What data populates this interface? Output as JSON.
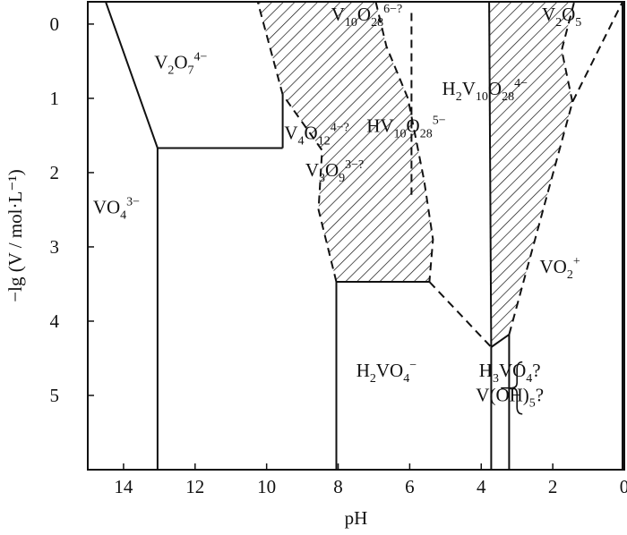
{
  "chart_data": {
    "type": "phase-diagram",
    "xlabel": "pH",
    "ylabel": "−lg (V / mol·L⁻¹)",
    "x_reversed": true,
    "xlim": [
      15,
      0
    ],
    "ylim": [
      -0.3,
      6
    ],
    "x_ticks": [
      14,
      12,
      10,
      8,
      6,
      4,
      2,
      0
    ],
    "y_ticks": [
      0,
      1,
      2,
      3,
      4,
      5
    ],
    "regions": [
      {
        "id": "vo4",
        "base": "VO",
        "parts": [
          {
            "t": "4",
            "k": "sub"
          },
          {
            "t": "3−",
            "k": "sup"
          }
        ],
        "x": 14.2,
        "y": 2.55
      },
      {
        "id": "v2o7",
        "base": "V",
        "parts": [
          {
            "t": "2",
            "k": "sub"
          },
          {
            "t": "O",
            "k": "base"
          },
          {
            "t": "7",
            "k": "sub"
          },
          {
            "t": "4−",
            "k": "sup"
          }
        ],
        "x": 12.4,
        "y": 0.6
      },
      {
        "id": "v4o12",
        "base": "V",
        "parts": [
          {
            "t": "4",
            "k": "sub"
          },
          {
            "t": "O",
            "k": "base"
          },
          {
            "t": "12",
            "k": "sub"
          },
          {
            "t": "4−?",
            "k": "sup"
          }
        ],
        "x": 8.6,
        "y": 1.55
      },
      {
        "id": "v3o9",
        "base": "V",
        "parts": [
          {
            "t": "3",
            "k": "sub"
          },
          {
            "t": "O",
            "k": "base"
          },
          {
            "t": "9",
            "k": "sub"
          },
          {
            "t": "3−?",
            "k": "sup"
          }
        ],
        "x": 8.1,
        "y": 2.05
      },
      {
        "id": "v10o28",
        "base": "V",
        "parts": [
          {
            "t": "10",
            "k": "sub"
          },
          {
            "t": "O",
            "k": "base"
          },
          {
            "t": "28",
            "k": "sub"
          },
          {
            "t": "6−?",
            "k": "sup"
          }
        ],
        "x": 7.2,
        "y": -0.05
      },
      {
        "id": "hv10o28",
        "base": "HV",
        "parts": [
          {
            "t": "10",
            "k": "sub"
          },
          {
            "t": "O",
            "k": "base"
          },
          {
            "t": "28",
            "k": "sub"
          },
          {
            "t": "5−",
            "k": "sup"
          }
        ],
        "x": 6.1,
        "y": 1.45
      },
      {
        "id": "h2v10o28",
        "base": "H",
        "parts": [
          {
            "t": "2",
            "k": "sub"
          },
          {
            "t": "V",
            "k": "base"
          },
          {
            "t": "10",
            "k": "sub"
          },
          {
            "t": "O",
            "k": "base"
          },
          {
            "t": "28",
            "k": "sub"
          },
          {
            "t": "4−",
            "k": "sup"
          }
        ],
        "x": 3.9,
        "y": 0.95
      },
      {
        "id": "v2o5",
        "base": "V",
        "parts": [
          {
            "t": "2",
            "k": "sub"
          },
          {
            "t": "O",
            "k": "base"
          },
          {
            "t": "5",
            "k": "sub"
          }
        ],
        "x": 1.75,
        "y": -0.05
      },
      {
        "id": "vo2",
        "base": "VO",
        "parts": [
          {
            "t": "2",
            "k": "sub"
          },
          {
            "t": "+",
            "k": "sup"
          }
        ],
        "x": 1.8,
        "y": 3.35
      },
      {
        "id": "h2vo4",
        "base": "H",
        "parts": [
          {
            "t": "2",
            "k": "sub"
          },
          {
            "t": "VO",
            "k": "base"
          },
          {
            "t": "4",
            "k": "sub"
          },
          {
            "t": "−",
            "k": "sup"
          }
        ],
        "x": 6.65,
        "y": 4.75
      },
      {
        "id": "h3vo4",
        "base": "H",
        "parts": [
          {
            "t": "3",
            "k": "sub"
          },
          {
            "t": "VO",
            "k": "base"
          },
          {
            "t": "4",
            "k": "sub"
          },
          {
            "t": "?",
            "k": "base"
          }
        ],
        "x": 3.2,
        "y": 4.75
      },
      {
        "id": "voh5",
        "base": "V(OH)",
        "parts": [
          {
            "t": "5",
            "k": "sub"
          },
          {
            "t": "?",
            "k": "base"
          }
        ],
        "x": 3.2,
        "y": 5.08
      }
    ],
    "solid_boundaries": [
      [
        [
          14.5,
          -0.3
        ],
        [
          13.05,
          1.67
        ]
      ],
      [
        [
          13.05,
          1.67
        ],
        [
          9.55,
          1.67
        ]
      ],
      [
        [
          13.05,
          1.67
        ],
        [
          13.05,
          6.0
        ]
      ],
      [
        [
          9.55,
          1.67
        ],
        [
          9.55,
          0.95
        ]
      ],
      [
        [
          8.05,
          3.47
        ],
        [
          5.45,
          3.47
        ]
      ],
      [
        [
          8.05,
          3.47
        ],
        [
          8.05,
          6.0
        ]
      ],
      [
        [
          3.72,
          4.35
        ],
        [
          3.72,
          6.0
        ]
      ],
      [
        [
          3.22,
          4.18
        ],
        [
          3.22,
          6.0
        ]
      ],
      [
        [
          3.72,
          4.35
        ],
        [
          3.22,
          4.18
        ]
      ],
      [
        [
          3.72,
          4.35
        ],
        [
          3.78,
          -0.3
        ]
      ],
      [
        [
          0.05,
          -0.3
        ],
        [
          0.05,
          6.0
        ]
      ]
    ],
    "dashed_boundaries": [
      [
        [
          9.55,
          0.95
        ],
        [
          10.25,
          -0.3
        ]
      ],
      [
        [
          8.05,
          3.47
        ],
        [
          8.55,
          2.5
        ],
        [
          8.45,
          1.7
        ],
        [
          9.55,
          0.95
        ]
      ],
      [
        [
          6.95,
          -0.3
        ],
        [
          6.65,
          0.3
        ],
        [
          6.05,
          1.0
        ],
        [
          5.6,
          2.1
        ],
        [
          5.35,
          2.9
        ],
        [
          5.45,
          3.47
        ]
      ],
      [
        [
          5.95,
          -0.15
        ],
        [
          5.95,
          2.3
        ]
      ],
      [
        [
          5.45,
          3.47
        ],
        [
          3.72,
          4.35
        ]
      ],
      [
        [
          3.22,
          4.18
        ],
        [
          1.45,
          1.05
        ],
        [
          0.05,
          -0.3
        ]
      ],
      [
        [
          1.45,
          1.05
        ],
        [
          1.75,
          0.35
        ],
        [
          1.4,
          -0.3
        ]
      ]
    ],
    "hatched_regions": [
      [
        [
          10.25,
          -0.3
        ],
        [
          6.95,
          -0.3
        ],
        [
          6.65,
          0.3
        ],
        [
          6.05,
          1.0
        ],
        [
          5.6,
          2.1
        ],
        [
          5.35,
          2.9
        ],
        [
          5.45,
          3.47
        ],
        [
          8.05,
          3.47
        ],
        [
          8.55,
          2.5
        ],
        [
          8.45,
          1.7
        ],
        [
          9.55,
          0.95
        ]
      ],
      [
        [
          3.78,
          -0.3
        ],
        [
          1.4,
          -0.3
        ],
        [
          1.75,
          0.35
        ],
        [
          1.45,
          1.05
        ],
        [
          3.22,
          4.18
        ],
        [
          3.72,
          4.35
        ]
      ]
    ],
    "brace": {
      "x": 3.0,
      "y_top": 4.55,
      "y_bottom": 5.25,
      "tie_from_x": 3.45,
      "tie_y": 4.9
    }
  }
}
